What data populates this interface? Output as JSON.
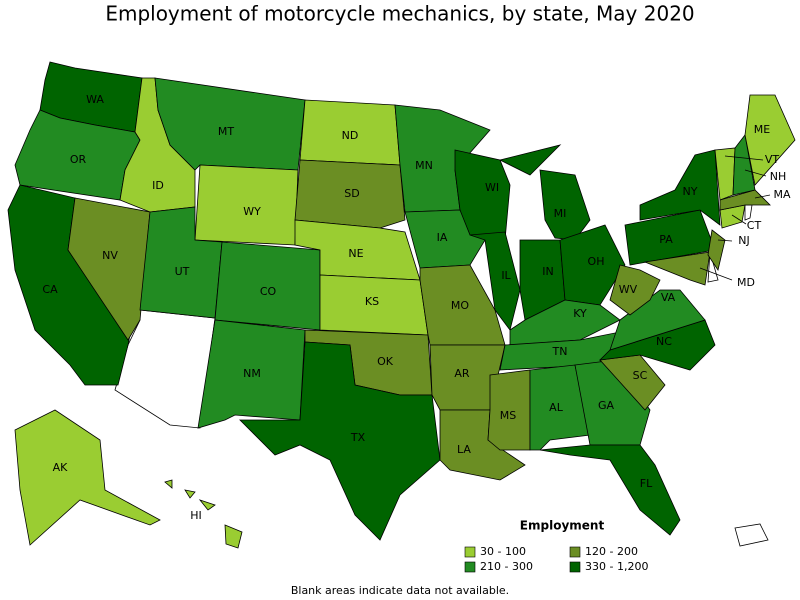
{
  "title": "Employment of motorcycle mechanics, by state, May 2020",
  "legend": {
    "title": "Employment",
    "classes": [
      {
        "label": "30 - 100",
        "color": "#9acd32"
      },
      {
        "label": "120 - 200",
        "color": "#6b8e23"
      },
      {
        "label": "210 - 300",
        "color": "#228b22"
      },
      {
        "label": "330 - 1,200",
        "color": "#006400"
      }
    ]
  },
  "states": [
    {
      "abbr": "WA",
      "class": "330 - 1,200"
    },
    {
      "abbr": "OR",
      "class": "210 - 300"
    },
    {
      "abbr": "CA",
      "class": "330 - 1,200"
    },
    {
      "abbr": "NV",
      "class": "120 - 200"
    },
    {
      "abbr": "ID",
      "class": "30 - 100"
    },
    {
      "abbr": "MT",
      "class": "210 - 300"
    },
    {
      "abbr": "WY",
      "class": "30 - 100"
    },
    {
      "abbr": "UT",
      "class": "210 - 300"
    },
    {
      "abbr": "CO",
      "class": "210 - 300"
    },
    {
      "abbr": "NM",
      "class": "210 - 300"
    },
    {
      "abbr": "ND",
      "class": "30 - 100"
    },
    {
      "abbr": "SD",
      "class": "120 - 200"
    },
    {
      "abbr": "NE",
      "class": "30 - 100"
    },
    {
      "abbr": "KS",
      "class": "30 - 100"
    },
    {
      "abbr": "OK",
      "class": "120 - 200"
    },
    {
      "abbr": "TX",
      "class": "330 - 1,200"
    },
    {
      "abbr": "MN",
      "class": "210 - 300"
    },
    {
      "abbr": "IA",
      "class": "210 - 300"
    },
    {
      "abbr": "MO",
      "class": "120 - 200"
    },
    {
      "abbr": "AR",
      "class": "120 - 200"
    },
    {
      "abbr": "LA",
      "class": "120 - 200"
    },
    {
      "abbr": "WI",
      "class": "330 - 1,200"
    },
    {
      "abbr": "IL",
      "class": "330 - 1,200"
    },
    {
      "abbr": "MI",
      "class": "330 - 1,200"
    },
    {
      "abbr": "IN",
      "class": "330 - 1,200"
    },
    {
      "abbr": "OH",
      "class": "330 - 1,200"
    },
    {
      "abbr": "KY",
      "class": "210 - 300"
    },
    {
      "abbr": "TN",
      "class": "210 - 300"
    },
    {
      "abbr": "MS",
      "class": "120 - 200"
    },
    {
      "abbr": "AL",
      "class": "210 - 300"
    },
    {
      "abbr": "GA",
      "class": "210 - 300"
    },
    {
      "abbr": "FL",
      "class": "330 - 1,200"
    },
    {
      "abbr": "SC",
      "class": "120 - 200"
    },
    {
      "abbr": "NC",
      "class": "330 - 1,200"
    },
    {
      "abbr": "VA",
      "class": "210 - 300"
    },
    {
      "abbr": "WV",
      "class": "120 - 200"
    },
    {
      "abbr": "PA",
      "class": "330 - 1,200"
    },
    {
      "abbr": "NY",
      "class": "330 - 1,200"
    },
    {
      "abbr": "MD",
      "class": "120 - 200"
    },
    {
      "abbr": "NJ",
      "class": "120 - 200"
    },
    {
      "abbr": "CT",
      "class": "30 - 100"
    },
    {
      "abbr": "MA",
      "class": "120 - 200"
    },
    {
      "abbr": "VT",
      "class": "30 - 100"
    },
    {
      "abbr": "NH",
      "class": "210 - 300"
    },
    {
      "abbr": "ME",
      "class": "30 - 100"
    },
    {
      "abbr": "AK",
      "class": "30 - 100"
    },
    {
      "abbr": "HI",
      "class": "30 - 100"
    }
  ],
  "note": "Blank areas indicate data not available."
}
